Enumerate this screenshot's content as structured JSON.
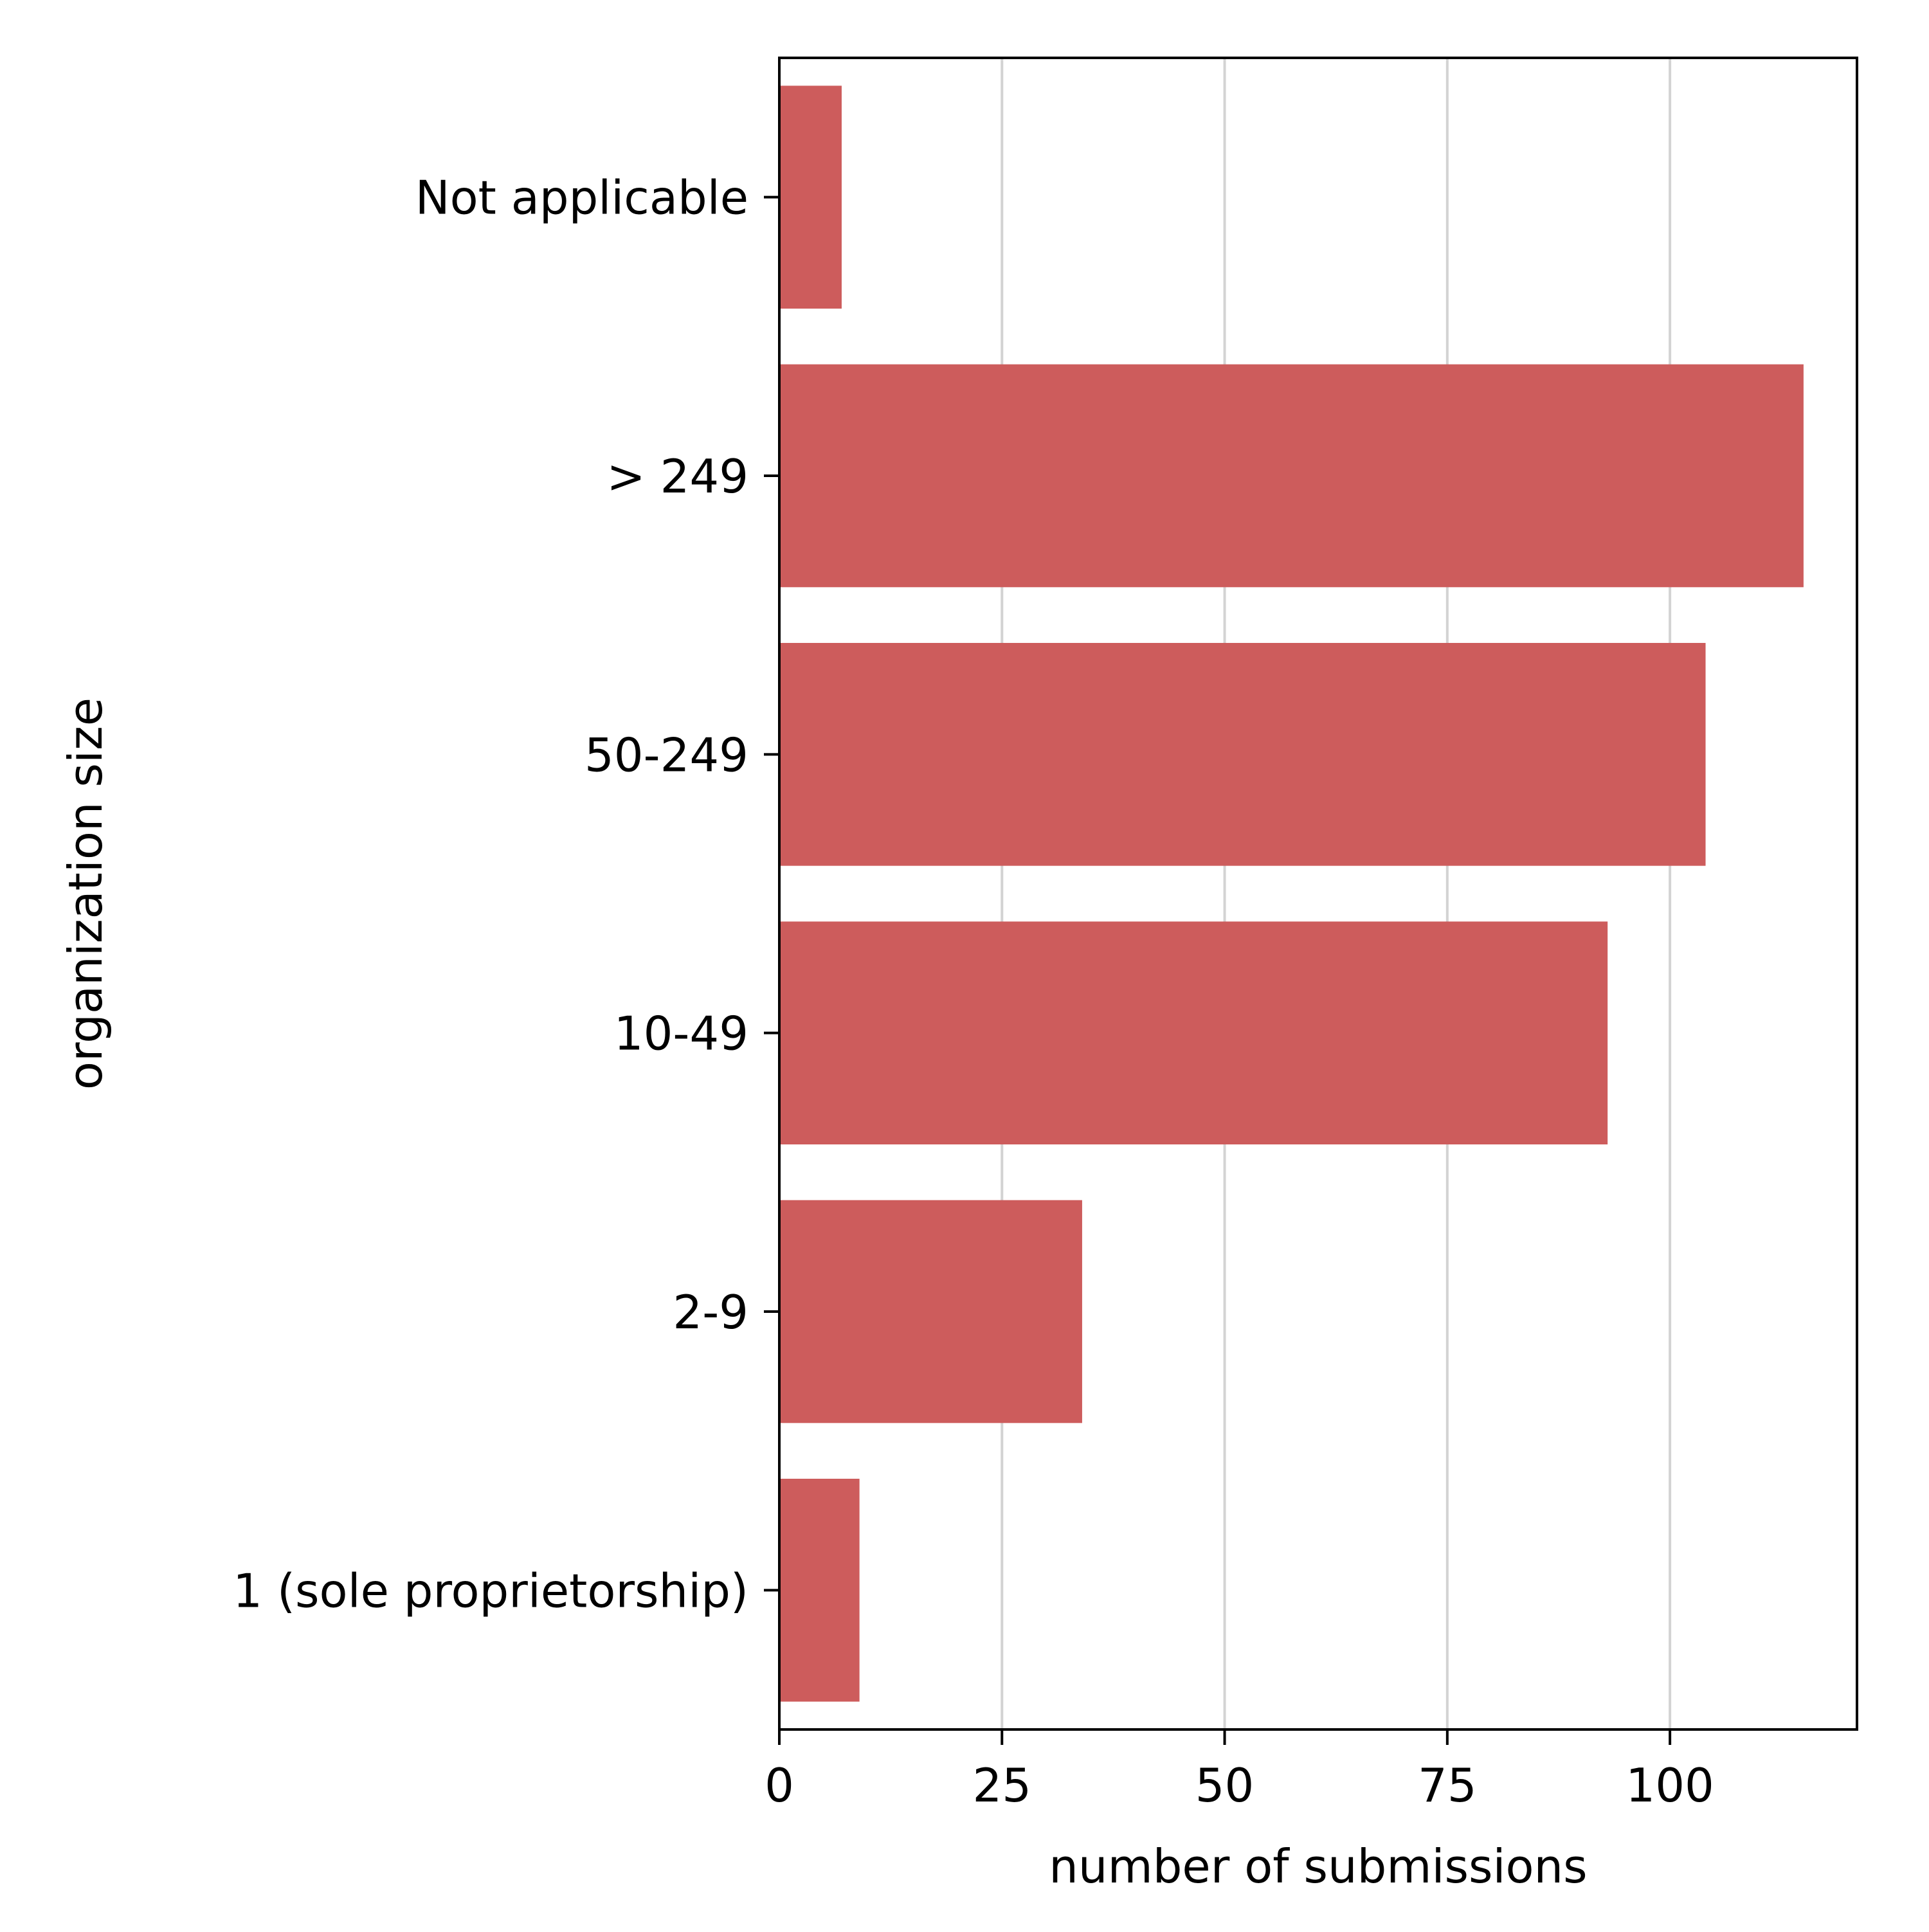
{
  "chart_data": {
    "type": "bar",
    "orientation": "horizontal",
    "title": "",
    "xlabel": "number of submissions",
    "ylabel": "organization size",
    "categories": [
      "1 (sole proprietorship)",
      "2-9",
      "10-49",
      "50-249",
      "> 249",
      "Not applicable"
    ],
    "values": [
      9,
      34,
      93,
      104,
      115,
      7
    ],
    "xlim": [
      0,
      121
    ],
    "xticks": [
      0,
      25,
      50,
      75,
      100
    ],
    "grid": {
      "x": true,
      "y": false
    },
    "legend": "none",
    "bar_color": "#cd5c5c",
    "grid_color": "#d3d3d3"
  }
}
